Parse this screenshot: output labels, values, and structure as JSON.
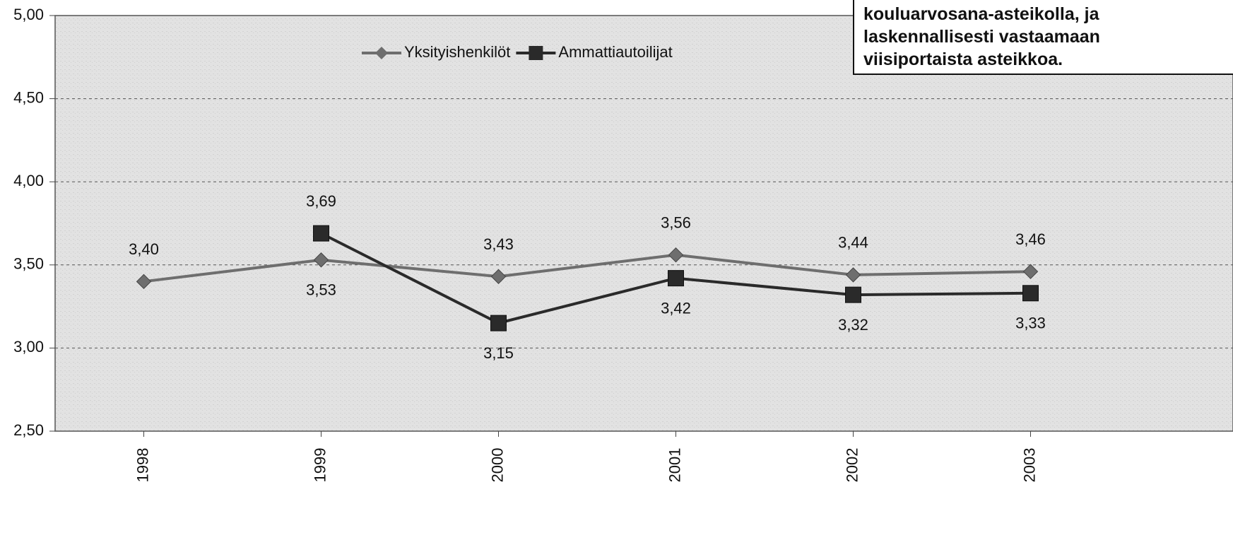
{
  "chart_data": {
    "type": "line",
    "categories": [
      "1998",
      "1999",
      "2000",
      "2001",
      "2002",
      "2003"
    ],
    "series": [
      {
        "name": "Yksityishenkilöt",
        "color": "#6e6e6e",
        "marker": "diamond",
        "values": [
          3.4,
          3.53,
          3.43,
          3.56,
          3.44,
          3.46
        ],
        "value_labels": [
          "3,40",
          "3,53",
          "3,43",
          "3,56",
          "3,44",
          "3,46"
        ]
      },
      {
        "name": "Ammattiautoilijat",
        "color": "#2a2a2a",
        "marker": "square",
        "values": [
          null,
          3.69,
          3.15,
          3.42,
          3.32,
          3.33
        ],
        "value_labels": [
          null,
          "3,69",
          "3,15",
          "3,42",
          "3,32",
          "3,33"
        ]
      }
    ],
    "ylim": [
      2.5,
      5.0
    ],
    "yticks": [
      {
        "value": 2.5,
        "label": "2,50"
      },
      {
        "value": 3.0,
        "label": "3,00"
      },
      {
        "value": 3.5,
        "label": "3,50"
      },
      {
        "value": 4.0,
        "label": "4,00"
      },
      {
        "value": 4.5,
        "label": "4,50"
      },
      {
        "value": 5.0,
        "label": "5,00"
      }
    ],
    "grid": true,
    "annotation": [
      "kouluarvosana-asteikolla, ja",
      "laskennallisesti vastaamaan",
      "viisiportaista asteikkoa."
    ]
  }
}
